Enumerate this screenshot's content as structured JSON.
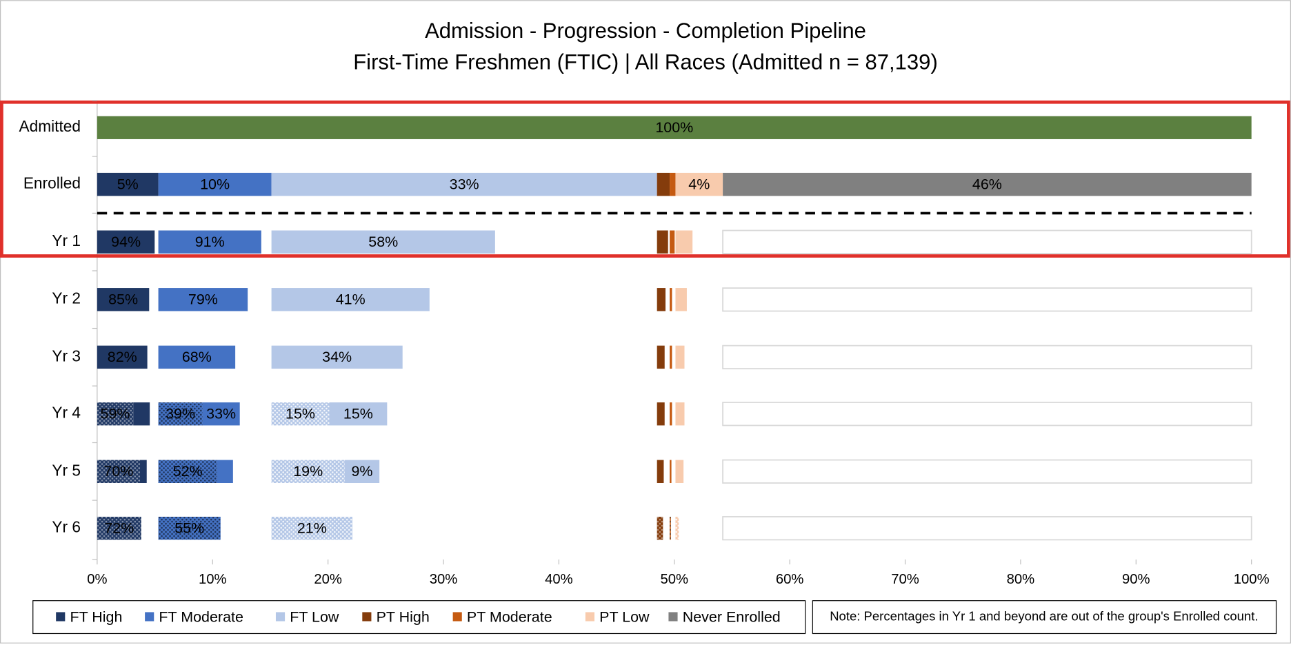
{
  "chart_data": {
    "type": "pipeline",
    "title": "Admission - Progression - Completion Pipeline",
    "subtitle": "First-Time Freshmen (FTIC) | All Races (Admitted n = 87,139)",
    "rows": [
      "Admitted",
      "Enrolled",
      "Yr 1",
      "Yr 2",
      "Yr 3",
      "Yr 4",
      "Yr 5",
      "Yr 6"
    ],
    "admitted": {
      "color": "#5b8040",
      "value": 100,
      "value_label": "100%"
    },
    "series": [
      {
        "name": "FT High",
        "color": "#203864",
        "enrolled": 5.3,
        "enrolled_label": "5%",
        "persisting": [
          94,
          85,
          82,
          27,
          11,
          null
        ],
        "persisting_labels": [
          "94%",
          "85%",
          "82%",
          null,
          null,
          null
        ],
        "completed": [
          null,
          null,
          null,
          59,
          70,
          72
        ],
        "completed_labels": [
          null,
          null,
          null,
          "59%",
          "70%",
          "72%"
        ]
      },
      {
        "name": "FT Moderate",
        "color": "#4472c4",
        "enrolled": 9.8,
        "enrolled_label": "10%",
        "persisting": [
          91,
          79,
          68,
          33,
          14,
          null
        ],
        "persisting_labels": [
          "91%",
          "79%",
          "68%",
          "33%",
          null,
          null
        ],
        "completed": [
          null,
          null,
          null,
          39,
          52,
          55
        ],
        "completed_labels": [
          null,
          null,
          null,
          "39%",
          "52%",
          "55%"
        ]
      },
      {
        "name": "FT Low",
        "color": "#b4c7e7",
        "enrolled": 33.4,
        "enrolled_label": "33%",
        "persisting": [
          58,
          41,
          34,
          15,
          9,
          null
        ],
        "persisting_labels": [
          "58%",
          "41%",
          "34%",
          "15%",
          "9%",
          null
        ],
        "completed": [
          null,
          null,
          null,
          15,
          19,
          21
        ],
        "completed_labels": [
          null,
          null,
          null,
          "15%",
          "19%",
          "21%"
        ]
      },
      {
        "name": "PT High",
        "color": "#843c0c",
        "enrolled": 1.1,
        "persisting": [
          87,
          67,
          60,
          60,
          53,
          null
        ],
        "completed": [
          null,
          null,
          null,
          null,
          null,
          47
        ]
      },
      {
        "name": "PT Moderate",
        "color": "#c55a11",
        "enrolled": 0.5,
        "persisting": [
          86,
          40,
          40,
          40,
          30,
          null
        ],
        "completed": [
          null,
          null,
          null,
          null,
          null,
          20
        ]
      },
      {
        "name": "PT Low",
        "color": "#f8cbad",
        "enrolled": 4.1,
        "enrolled_label": "4%",
        "persisting": [
          36,
          24,
          19,
          19,
          17,
          null
        ],
        "completed": [
          null,
          null,
          null,
          null,
          null,
          7
        ]
      },
      {
        "name": "Never Enrolled",
        "color": "#808080",
        "enrolled": 45.8,
        "enrolled_label": "46%"
      }
    ],
    "xlim": [
      0,
      100
    ],
    "xticks": [
      {
        "value": 0,
        "label": "0%"
      },
      {
        "value": 10,
        "label": "10%"
      },
      {
        "value": 20,
        "label": "20%"
      },
      {
        "value": 30,
        "label": "30%"
      },
      {
        "value": 40,
        "label": "40%"
      },
      {
        "value": 50,
        "label": "50%"
      },
      {
        "value": 60,
        "label": "60%"
      },
      {
        "value": 70,
        "label": "70%"
      },
      {
        "value": 80,
        "label": "80%"
      },
      {
        "value": 90,
        "label": "90%"
      },
      {
        "value": 100,
        "label": "100%"
      }
    ],
    "note": "Note: Percentages in Yr 1 and beyond are out of the group's Enrolled count."
  }
}
